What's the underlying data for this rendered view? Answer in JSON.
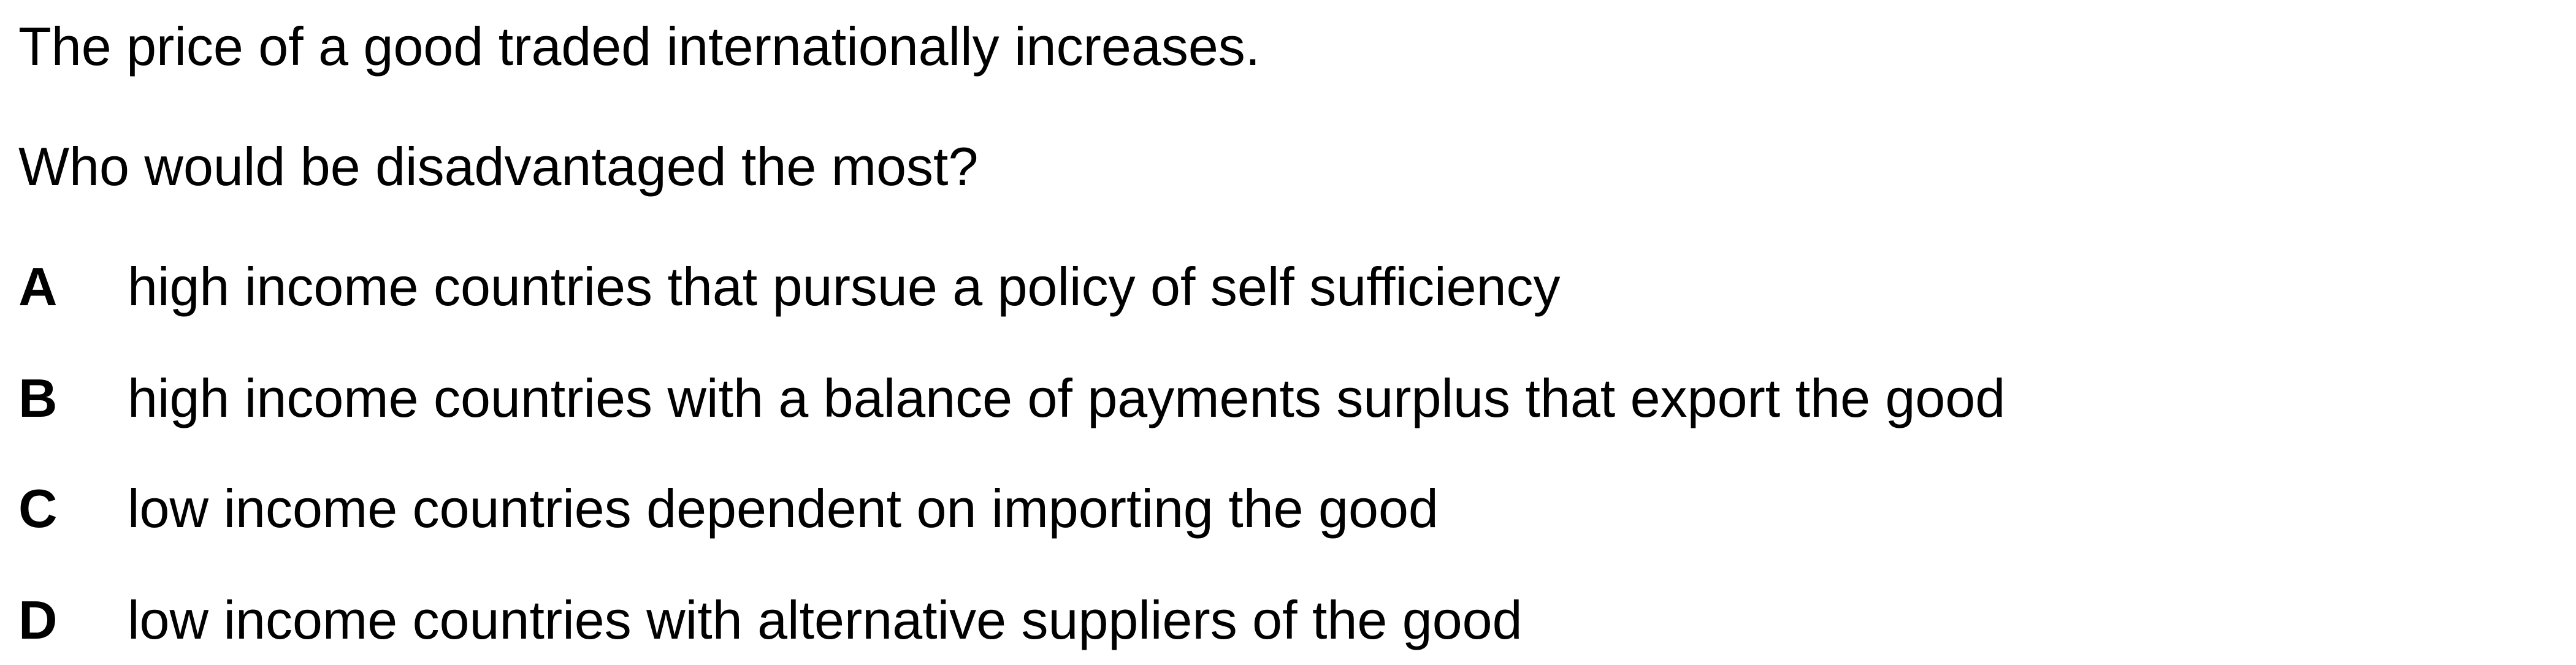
{
  "question": {
    "stem_line_1": "The price of a good traded internationally increases.",
    "stem_line_2": "Who would be disadvantaged the most?",
    "options": [
      {
        "letter": "A",
        "text": "high income countries that pursue a policy of self sufficiency"
      },
      {
        "letter": "B",
        "text": "high income countries with a balance of payments surplus that export the good"
      },
      {
        "letter": "C",
        "text": "low income countries dependent on importing the good"
      },
      {
        "letter": "D",
        "text": "low income countries with alternative suppliers of the good"
      }
    ]
  }
}
